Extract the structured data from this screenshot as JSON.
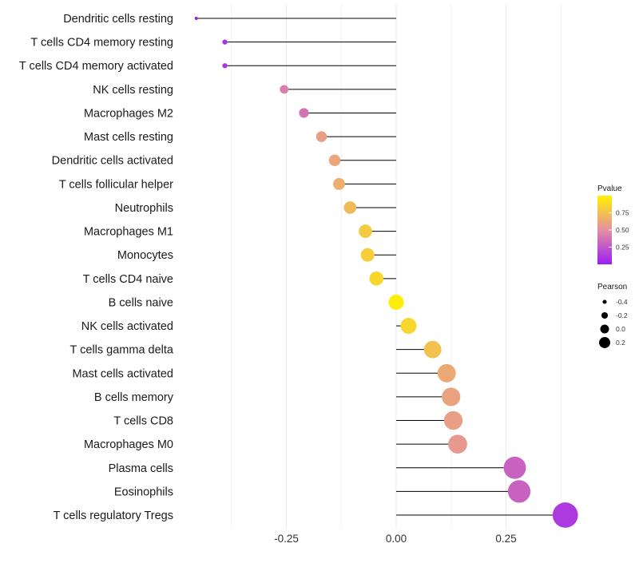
{
  "chart_data": {
    "type": "lollipop",
    "title": "",
    "xlabel": "",
    "ylabel": "",
    "xlim": [
      -0.45,
      0.4
    ],
    "x_ticks": [
      -0.25,
      0.0,
      0.25
    ],
    "x_tick_labels": [
      "-0.25",
      "0.00",
      "0.25"
    ],
    "grid": "vertical",
    "categories": [
      "Dendritic cells resting",
      "T cells CD4 memory resting",
      "T cells CD4 memory activated",
      "NK cells resting",
      "Macrophages M2",
      "Mast cells resting",
      "Dendritic cells activated",
      "T cells follicular helper",
      "Neutrophils",
      "Macrophages M1",
      "Monocytes",
      "T cells CD4 naive",
      "B cells naive",
      "NK cells activated",
      "T cells gamma delta",
      "Mast cells activated",
      "B cells memory",
      "T cells CD8",
      "Macrophages M0",
      "Plasma cells",
      "Eosinophils",
      "T cells regulatory  Tregs"
    ],
    "values": [
      -0.455,
      -0.39,
      -0.39,
      -0.255,
      -0.21,
      -0.17,
      -0.14,
      -0.13,
      -0.105,
      -0.07,
      -0.065,
      -0.045,
      0.0,
      0.028,
      0.083,
      0.115,
      0.125,
      0.13,
      0.14,
      0.27,
      0.28,
      0.385
    ],
    "pvalues": [
      0.02,
      0.1,
      0.1,
      0.42,
      0.38,
      0.58,
      0.62,
      0.66,
      0.72,
      0.8,
      0.82,
      0.86,
      0.98,
      0.86,
      0.75,
      0.63,
      0.6,
      0.58,
      0.55,
      0.3,
      0.3,
      0.12
    ],
    "legend_position": "right",
    "legends": {
      "color": {
        "title": "Pvalue",
        "ticks": [
          "0.75",
          "0.50",
          "0.25"
        ],
        "tick_values": [
          0.75,
          0.5,
          0.25
        ],
        "range": [
          0.0,
          1.0
        ],
        "colors": [
          "#9b1ff3",
          "#e48fa0",
          "#fff200"
        ]
      },
      "size": {
        "title": "Pearson",
        "labels": [
          "-0.4",
          "-0.2",
          "0.0",
          "0.2"
        ],
        "values": [
          -0.4,
          -0.2,
          0.0,
          0.2
        ]
      }
    },
    "colors": {
      "stem": "#000000",
      "grid": "#ebebeb"
    }
  }
}
